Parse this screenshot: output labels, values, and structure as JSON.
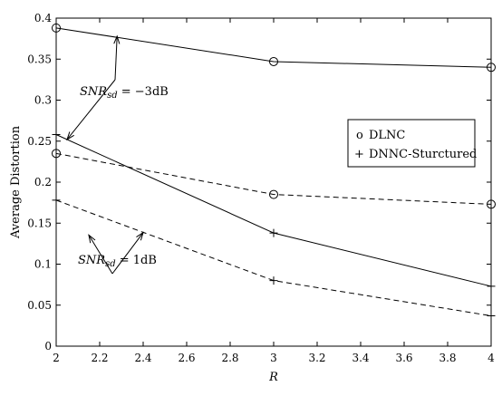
{
  "chart_data": {
    "type": "line",
    "title": "",
    "xlabel": "R",
    "ylabel": "Average Distortion",
    "xlim": [
      2,
      4
    ],
    "ylim": [
      0,
      0.4
    ],
    "xticks": [
      2,
      2.2,
      2.4,
      2.6,
      2.8,
      3,
      3.2,
      3.4,
      3.6,
      3.8,
      4
    ],
    "yticks": [
      0,
      0.05,
      0.1,
      0.15,
      0.2,
      0.25,
      0.3,
      0.35,
      0.4
    ],
    "grid": false,
    "legend_position": "right",
    "legend": [
      {
        "marker": "o",
        "label": "DLNC"
      },
      {
        "marker": "+",
        "label": "DNNC-Sturctured"
      }
    ],
    "series": [
      {
        "marker": "o",
        "style": "solid",
        "x": [
          2,
          3,
          4
        ],
        "y": [
          0.388,
          0.347,
          0.34
        ]
      },
      {
        "marker": "o",
        "style": "dashed",
        "x": [
          2,
          3,
          4
        ],
        "y": [
          0.235,
          0.185,
          0.173
        ]
      },
      {
        "marker": "+",
        "style": "solid",
        "x": [
          2,
          3,
          4
        ],
        "y": [
          0.258,
          0.138,
          0.073
        ]
      },
      {
        "marker": "+",
        "style": "dashed",
        "x": [
          2,
          3,
          4
        ],
        "y": [
          0.178,
          0.08,
          0.037
        ]
      }
    ],
    "annotations": [
      {
        "text": "SNR",
        "subscript": "sd",
        "value": " = −3dB",
        "arrows_to": [
          {
            "x": 2.28,
            "y": 0.378
          },
          {
            "x": 2.05,
            "y": 0.252
          }
        ]
      },
      {
        "text": "SNR",
        "subscript": "sd",
        "value": " = 1dB",
        "arrows_to": [
          {
            "x": 2.15,
            "y": 0.1355
          },
          {
            "x": 2.4,
            "y": 0.1385
          }
        ]
      }
    ]
  }
}
